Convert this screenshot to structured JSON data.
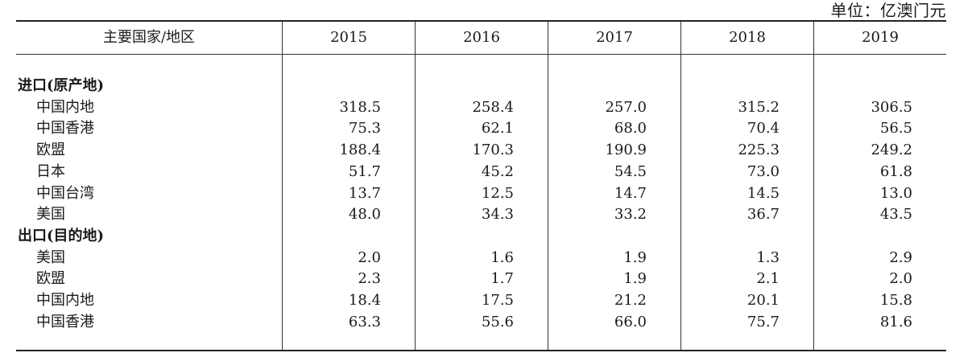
{
  "unit_label": "单位：亿澳门元",
  "header": {
    "col0": "主要国家/地区",
    "years": [
      "2015",
      "2016",
      "2017",
      "2018",
      "2019"
    ]
  },
  "sections": [
    {
      "title": "进口(原产地)",
      "rows": [
        {
          "name": "中国内地",
          "values": [
            "318.5",
            "258.4",
            "257.0",
            "315.2",
            "306.5"
          ]
        },
        {
          "name": "中国香港",
          "values": [
            "75.3",
            "62.1",
            "68.0",
            "70.4",
            "56.5"
          ]
        },
        {
          "name": "欧盟",
          "values": [
            "188.4",
            "170.3",
            "190.9",
            "225.3",
            "249.2"
          ]
        },
        {
          "name": "日本",
          "values": [
            "51.7",
            "45.2",
            "54.5",
            "73.0",
            "61.8"
          ]
        },
        {
          "name": "中国台湾",
          "values": [
            "13.7",
            "12.5",
            "14.7",
            "14.5",
            "13.0"
          ]
        },
        {
          "name": "美国",
          "values": [
            "48.0",
            "34.3",
            "33.2",
            "36.7",
            "43.5"
          ]
        }
      ]
    },
    {
      "title": "出口(目的地)",
      "rows": [
        {
          "name": "美国",
          "values": [
            "2.0",
            "1.6",
            "1.9",
            "1.3",
            "2.9"
          ]
        },
        {
          "name": "欧盟",
          "values": [
            "2.3",
            "1.7",
            "1.9",
            "2.1",
            "2.0"
          ]
        },
        {
          "name": "中国内地",
          "values": [
            "18.4",
            "17.5",
            "21.2",
            "20.1",
            "15.8"
          ]
        },
        {
          "name": "中国香港",
          "values": [
            "63.3",
            "55.6",
            "66.0",
            "75.7",
            "81.6"
          ]
        }
      ]
    }
  ]
}
